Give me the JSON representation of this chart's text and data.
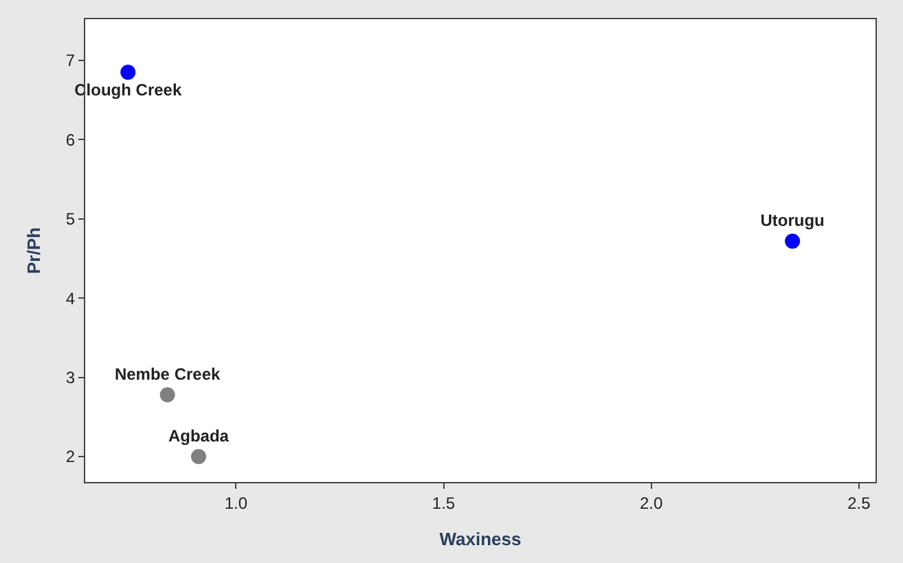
{
  "chart_data": {
    "type": "scatter",
    "xlabel": "Waxiness",
    "ylabel": "Pr/Ph",
    "series": [
      {
        "name": "Clough Creek",
        "color": "#0000ff",
        "x": [
          0.74
        ],
        "values": [
          6.85
        ]
      },
      {
        "name": "Utorugu",
        "color": "#0000ff",
        "x": [
          2.34
        ],
        "values": [
          4.72
        ]
      },
      {
        "name": "Nembe Creek",
        "color": "#808080",
        "x": [
          0.835
        ],
        "values": [
          2.78
        ]
      },
      {
        "name": "Agbada",
        "color": "#808080",
        "x": [
          0.91
        ],
        "values": [
          2.0
        ]
      }
    ],
    "xlim": [
      0.637,
      2.54
    ],
    "xticks": [
      {
        "value": 1,
        "label": "1.0"
      },
      1.5,
      {
        "value": 2,
        "label": "2.0"
      },
      2.5
    ],
    "ylim": [
      1.68,
      7.52
    ],
    "yticks": [
      2,
      3,
      4,
      5,
      6,
      7
    ],
    "legend": false,
    "marker": "circle"
  }
}
